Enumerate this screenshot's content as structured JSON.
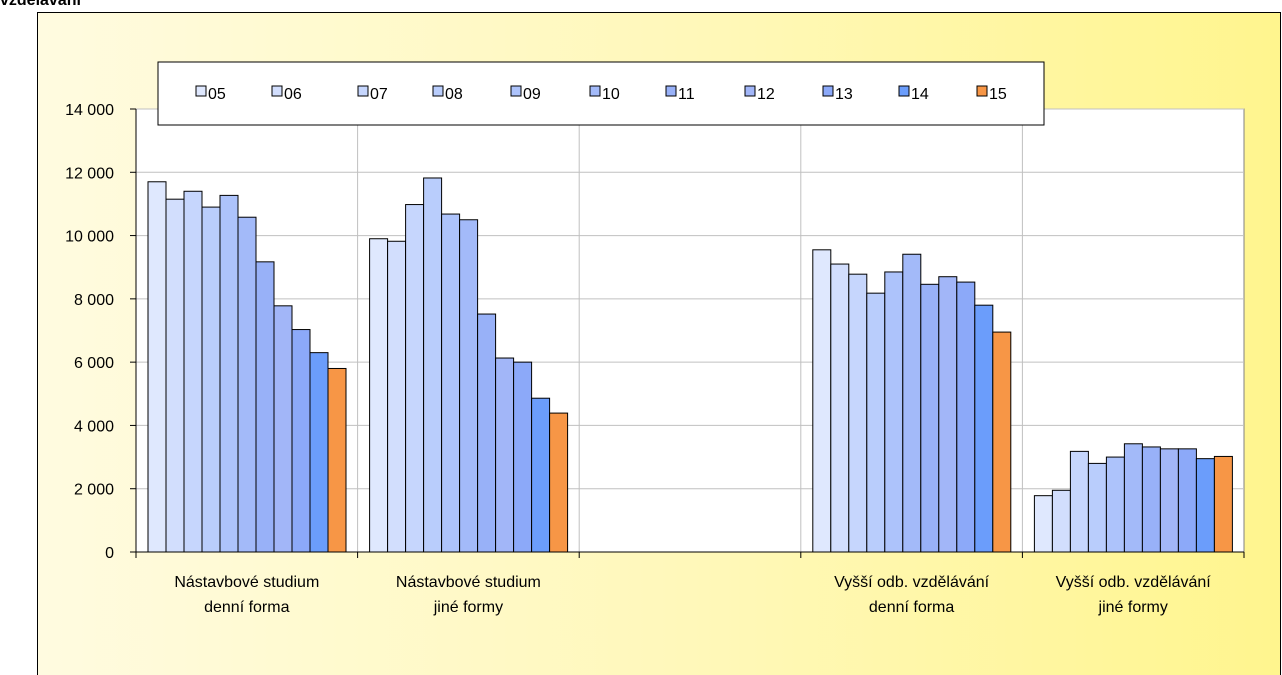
{
  "page": {
    "title": "vzdělávání"
  },
  "chart_data": {
    "type": "bar",
    "title": "",
    "xlabel": "",
    "ylabel": "",
    "ylim": [
      0,
      14000
    ],
    "yticks": [
      0,
      2000,
      4000,
      6000,
      8000,
      10000,
      12000,
      14000
    ],
    "ytick_labels": [
      "0",
      "2 000",
      "4 000",
      "6 000",
      "8 000",
      "10 000",
      "12 000",
      "14 000"
    ],
    "grid": "major y and category separators",
    "legend_position": "top",
    "categories": [
      [
        "Nástavbové studium",
        "denní forma"
      ],
      [
        "Nástavbové studium",
        "jiné formy"
      ],
      [
        "",
        ""
      ],
      [
        "Vyšší odb. vzdělávání",
        "denní forma"
      ],
      [
        "Vyšší odb. vzdělávání",
        "jiné formy"
      ]
    ],
    "series": [
      {
        "name": "05",
        "color": "#dfe8fe",
        "values": [
          11700,
          9900,
          null,
          9550,
          1780
        ]
      },
      {
        "name": "06",
        "color": "#d2defd",
        "values": [
          11150,
          9820,
          null,
          9100,
          1950
        ]
      },
      {
        "name": "07",
        "color": "#c6d6fd",
        "values": [
          11400,
          10980,
          null,
          8780,
          3180
        ]
      },
      {
        "name": "08",
        "color": "#b9cdfc",
        "values": [
          10900,
          11820,
          null,
          8180,
          2800
        ]
      },
      {
        "name": "09",
        "color": "#adc3fb",
        "values": [
          11270,
          10680,
          null,
          8850,
          3000
        ]
      },
      {
        "name": "10",
        "color": "#a3baf9",
        "values": [
          10580,
          10500,
          null,
          9410,
          3420
        ]
      },
      {
        "name": "11",
        "color": "#98b1f8",
        "values": [
          9170,
          7520,
          null,
          8460,
          3320
        ]
      },
      {
        "name": "12",
        "color": "#a2b6f8",
        "values": [
          7780,
          6130,
          null,
          8700,
          3260
        ]
      },
      {
        "name": "13",
        "color": "#8ca9f9",
        "values": [
          7030,
          6000,
          null,
          8530,
          3260
        ]
      },
      {
        "name": "14",
        "color": "#6b9dfb",
        "values": [
          6300,
          4860,
          null,
          7800,
          2950
        ]
      },
      {
        "name": "15",
        "color": "#f79646",
        "values": [
          5800,
          4390,
          null,
          6950,
          3020
        ]
      }
    ]
  }
}
